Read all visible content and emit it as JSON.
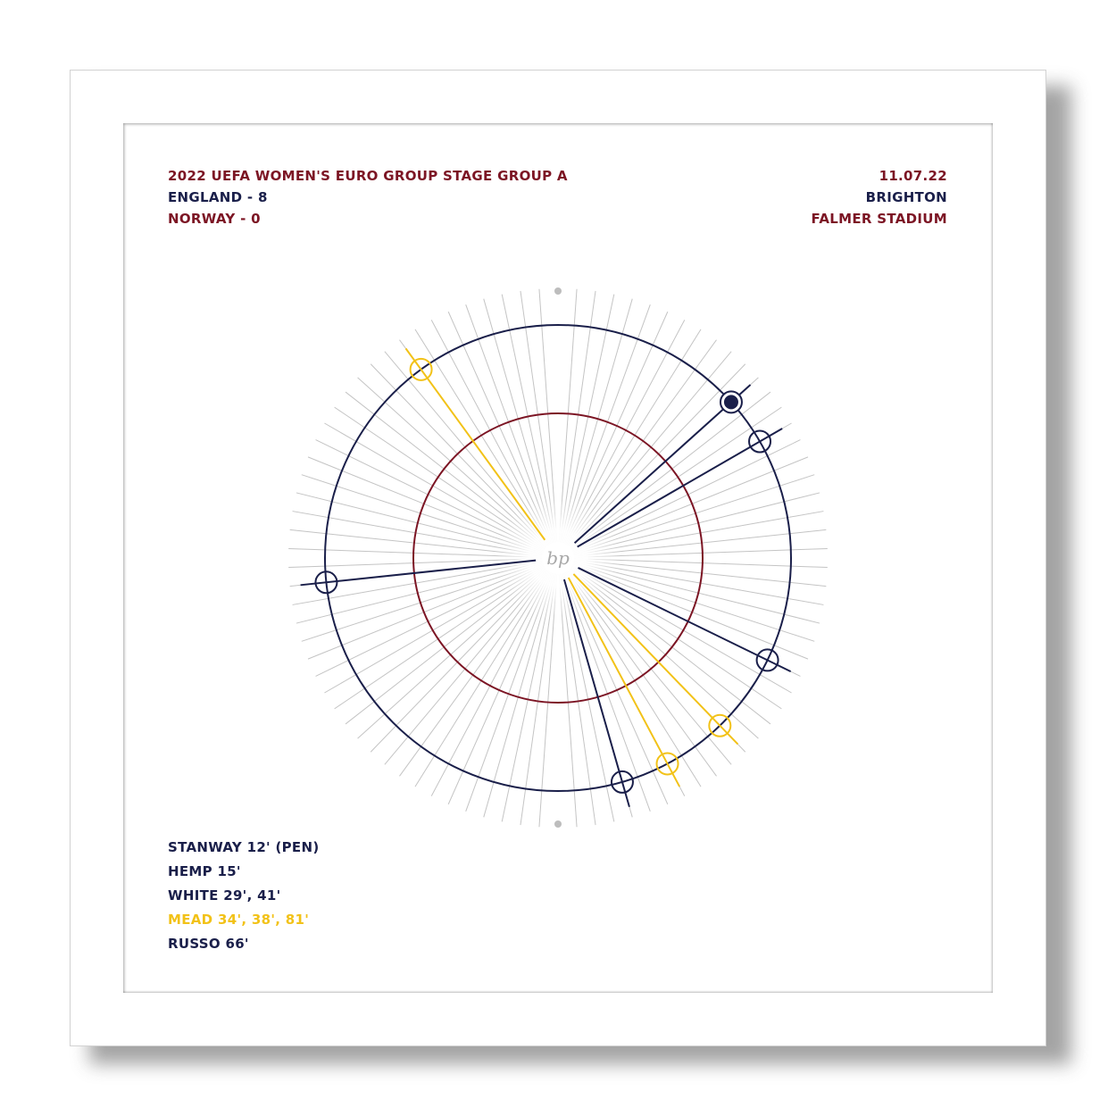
{
  "header": {
    "competition": "2022 UEFA WOMEN'S EURO GROUP STAGE GROUP A",
    "home_line": "ENGLAND - 8",
    "away_line": "NORWAY - 0",
    "date": "11.07.22",
    "city": "BRIGHTON",
    "venue": "FALMER STADIUM"
  },
  "scorers": [
    {
      "name": "STANWAY",
      "minutes": "12' (PEN)",
      "color": "navy"
    },
    {
      "name": "HEMP",
      "minutes": "15'",
      "color": "navy"
    },
    {
      "name": "WHITE",
      "minutes": "29', 41'",
      "color": "navy"
    },
    {
      "name": "MEAD",
      "minutes": "34', 38', 81'",
      "color": "gold"
    },
    {
      "name": "RUSSO",
      "minutes": "66'",
      "color": "navy"
    }
  ],
  "goals": [
    {
      "minute": 12,
      "type": "penalty",
      "color": "navy"
    },
    {
      "minute": 15,
      "type": "goal",
      "color": "navy"
    },
    {
      "minute": 29,
      "type": "goal",
      "color": "navy"
    },
    {
      "minute": 34,
      "type": "goal",
      "color": "gold"
    },
    {
      "minute": 38,
      "type": "goal",
      "color": "gold"
    },
    {
      "minute": 41,
      "type": "goal",
      "color": "navy"
    },
    {
      "minute": 66,
      "type": "goal",
      "color": "navy"
    },
    {
      "minute": 81,
      "type": "goal",
      "color": "gold"
    }
  ],
  "center_logo": "bp",
  "colors": {
    "navy": "#1a1f4a",
    "maroon": "#7c1524",
    "gold": "#f2c218",
    "spoke": "#c4c4c4"
  }
}
